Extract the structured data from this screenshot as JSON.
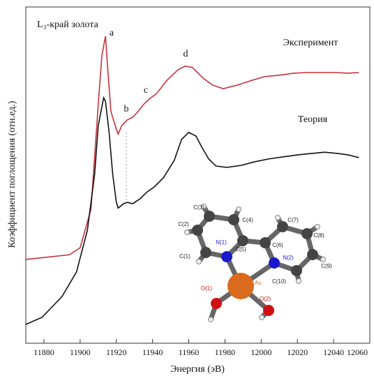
{
  "chart_data": {
    "type": "line",
    "xlabel": "Энергия (эВ)",
    "ylabel": "Коэффициент поглощения (отн.ед.)",
    "xlim": [
      11870,
      12060
    ],
    "xticks": [
      11880,
      11900,
      11920,
      11940,
      11960,
      11980,
      12000,
      12020,
      12040,
      12060
    ],
    "ylim": [
      0,
      10
    ],
    "annotations": [
      "L₃-край золота",
      "a",
      "b",
      "c",
      "d"
    ],
    "series": [
      {
        "name": "Эксперимент",
        "color": "#c8323c",
        "x": [
          11870,
          11894,
          11900,
          11906,
          11910,
          11912,
          11914,
          11915,
          11917,
          11920,
          11921,
          11923,
          11926,
          11929,
          11932,
          11935,
          11939,
          11942,
          11948,
          11954,
          11958,
          11962,
          11968,
          11973,
          11979,
          11987,
          11995,
          12002,
          12010,
          12018,
          12025,
          12033,
          12041,
          12048,
          12054
        ],
        "values": [
          2.49,
          2.63,
          2.84,
          3.98,
          7.1,
          8.55,
          9.13,
          8.34,
          6.89,
          6.37,
          6.22,
          6.47,
          6.64,
          6.72,
          6.89,
          7.1,
          7.3,
          7.41,
          7.82,
          8.13,
          8.24,
          8.2,
          7.88,
          7.68,
          7.57,
          7.68,
          7.82,
          7.93,
          7.97,
          8.03,
          8.05,
          8.05,
          8.05,
          8.03,
          8.05
        ]
      },
      {
        "name": "Теория",
        "color": "#111111",
        "x": [
          11870,
          11879,
          11890,
          11898,
          11904,
          11908,
          11910,
          11913,
          11914,
          11916,
          11918,
          11920,
          11921,
          11924,
          11926,
          11929,
          11933,
          11937,
          11941,
          11946,
          11952,
          11956,
          11960,
          11964,
          11967,
          11971,
          11975,
          11981,
          11989,
          11996,
          12004,
          12012,
          12020,
          12027,
          12035,
          12043,
          12048,
          12054
        ],
        "values": [
          0.56,
          0.77,
          1.39,
          2.12,
          3.36,
          5.02,
          6.47,
          7.3,
          7.2,
          6.27,
          5.02,
          4.19,
          4.02,
          4.15,
          4.19,
          4.15,
          4.29,
          4.5,
          4.65,
          4.92,
          5.44,
          6.06,
          6.27,
          6.16,
          5.85,
          5.48,
          5.27,
          5.23,
          5.29,
          5.39,
          5.48,
          5.54,
          5.6,
          5.64,
          5.68,
          5.64,
          5.6,
          5.52
        ]
      }
    ]
  },
  "molecule": {
    "atoms": [
      "C(1)",
      "C(2)",
      "C(3)",
      "C(4)",
      "C(5)",
      "C(6)",
      "C(7)",
      "C(8)",
      "C(9)",
      "C(10)",
      "N(1)",
      "N(2)",
      "O(1)",
      "O(2)",
      "Au"
    ]
  }
}
